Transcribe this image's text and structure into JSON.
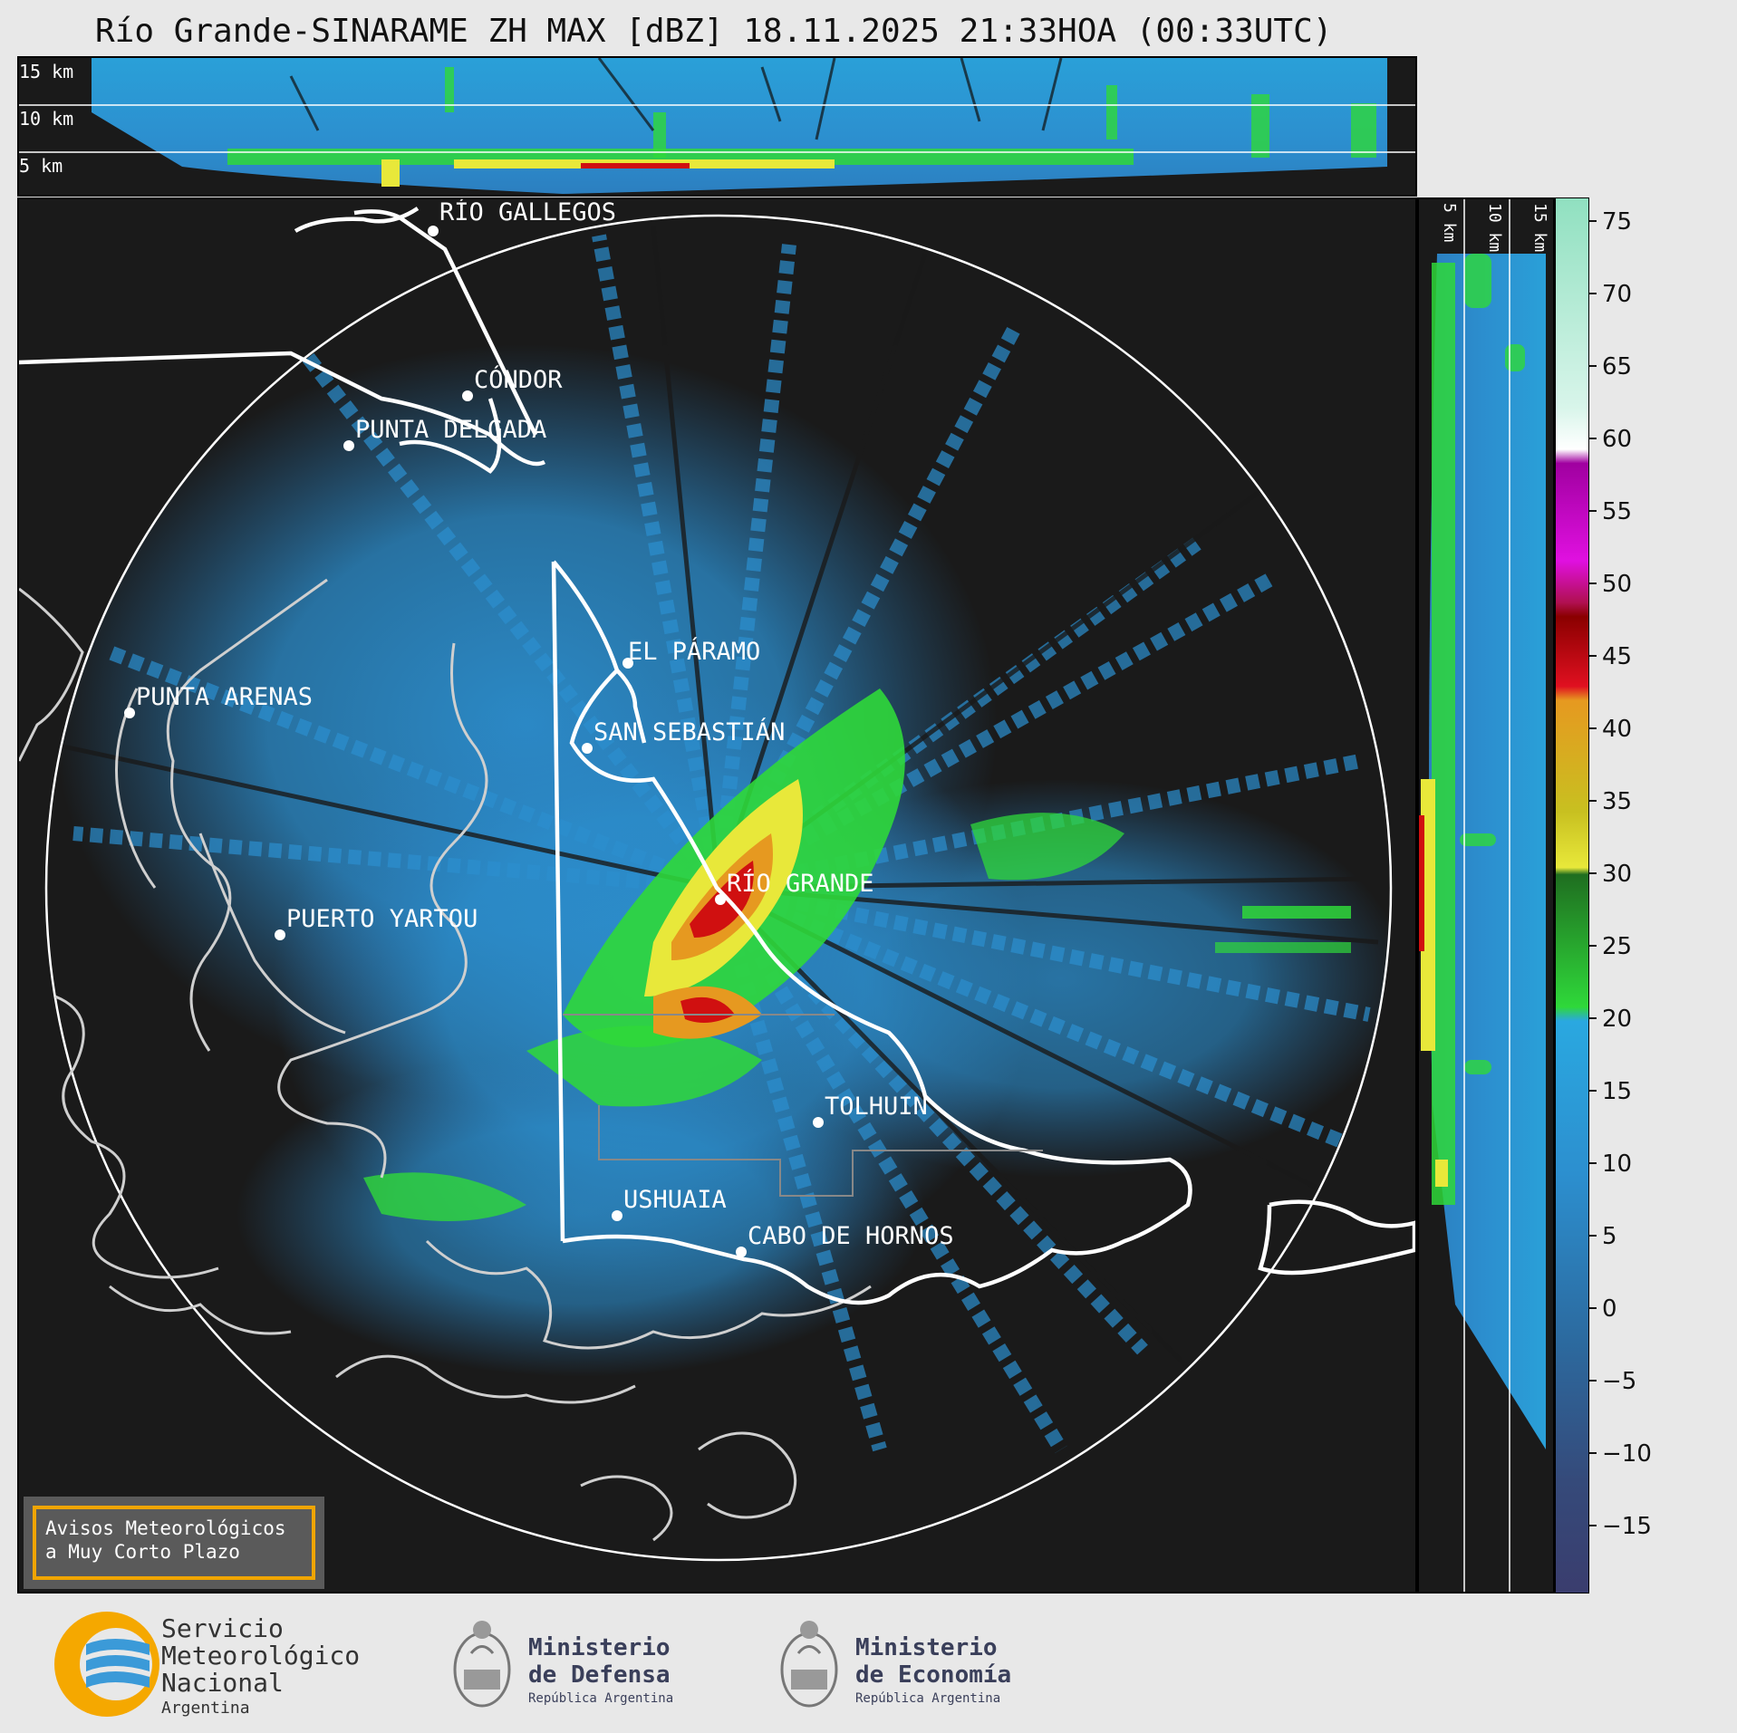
{
  "title": "Río Grande-SINARAME ZH MAX [dBZ] 18.11.2025 21:33HOA (00:33UTC)",
  "top_strip_labels": [
    "15 km",
    "10 km",
    "5 km"
  ],
  "side_strip_labels": [
    "5 km",
    "10 km",
    "15 km"
  ],
  "cities": [
    {
      "name": "RÍO GALLEGOS"
    },
    {
      "name": "CÓNDOR"
    },
    {
      "name": "PUNTA DELGADA"
    },
    {
      "name": "EL PÁRAMO"
    },
    {
      "name": "PUNTA ARENAS"
    },
    {
      "name": "SAN SEBASTIÁN"
    },
    {
      "name": "RÍO GRANDE"
    },
    {
      "name": "PUERTO YARTOU"
    },
    {
      "name": "TOLHUIN"
    },
    {
      "name": "USHUAIA"
    },
    {
      "name": "CABO DE HORNOS"
    }
  ],
  "colorbar": {
    "unit": "dBZ",
    "ticks": [
      "75",
      "70",
      "65",
      "60",
      "55",
      "50",
      "45",
      "40",
      "35",
      "30",
      "25",
      "20",
      "15",
      "10",
      "5",
      "0",
      "−5",
      "−10",
      "−15"
    ],
    "range": [
      -20,
      77
    ],
    "colors": {
      "low": "#3a3d6e",
      "blue": "#2c8fcf",
      "cyan": "#2aa8e0",
      "green": "#2fd83a",
      "dark_green": "#1f6e20",
      "yellow": "#e8e83a",
      "orange": "#e69920",
      "red": "#d01010",
      "magenta": "#e010e0",
      "white": "#ffffff",
      "mint": "#90e0c0"
    }
  },
  "warning_box": {
    "line1": "Avisos Meteorológicos",
    "line2": "a Muy Corto Plazo"
  },
  "logos": {
    "smn_line1": "Servicio",
    "smn_line2": "Meteorológico",
    "smn_line3": "Nacional",
    "smn_line4": "Argentina",
    "defensa_line1": "Ministerio",
    "defensa_line2": "de Defensa",
    "defensa_line3": "República Argentina",
    "economia_line1": "Ministerio",
    "economia_line2": "de Economía",
    "economia_line3": "República Argentina"
  }
}
